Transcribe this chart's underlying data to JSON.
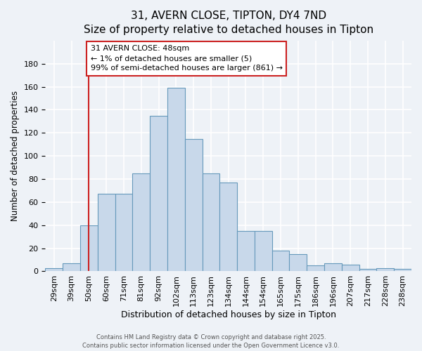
{
  "title": "31, AVERN CLOSE, TIPTON, DY4 7ND",
  "subtitle": "Size of property relative to detached houses in Tipton",
  "xlabel": "Distribution of detached houses by size in Tipton",
  "ylabel": "Number of detached properties",
  "bin_labels": [
    "29sqm",
    "39sqm",
    "50sqm",
    "60sqm",
    "71sqm",
    "81sqm",
    "92sqm",
    "102sqm",
    "113sqm",
    "123sqm",
    "134sqm",
    "144sqm",
    "154sqm",
    "165sqm",
    "175sqm",
    "186sqm",
    "196sqm",
    "207sqm",
    "217sqm",
    "228sqm",
    "238sqm"
  ],
  "bar_heights": [
    3,
    7,
    40,
    67,
    67,
    85,
    135,
    159,
    115,
    85,
    77,
    35,
    35,
    18,
    15,
    5,
    7,
    6,
    2,
    3,
    2
  ],
  "bar_color": "#c8d8ea",
  "bar_edge_color": "#6699bb",
  "vline_x_idx": 2,
  "vline_color": "#cc2222",
  "ylim": [
    0,
    200
  ],
  "yticks": [
    0,
    20,
    40,
    60,
    80,
    100,
    120,
    140,
    160,
    180
  ],
  "annotation_text": "31 AVERN CLOSE: 48sqm\n← 1% of detached houses are smaller (5)\n99% of semi-detached houses are larger (861) →",
  "annotation_box_color": "#ffffff",
  "annotation_box_edge": "#cc2222",
  "footer1": "Contains HM Land Registry data © Crown copyright and database right 2025.",
  "footer2": "Contains public sector information licensed under the Open Government Licence v3.0.",
  "background_color": "#eef2f7",
  "grid_color": "#ffffff",
  "title_fontsize": 11,
  "subtitle_fontsize": 10,
  "xlabel_fontsize": 9,
  "ylabel_fontsize": 8.5,
  "tick_fontsize": 8,
  "annotation_fontsize": 8,
  "footer_fontsize": 6
}
